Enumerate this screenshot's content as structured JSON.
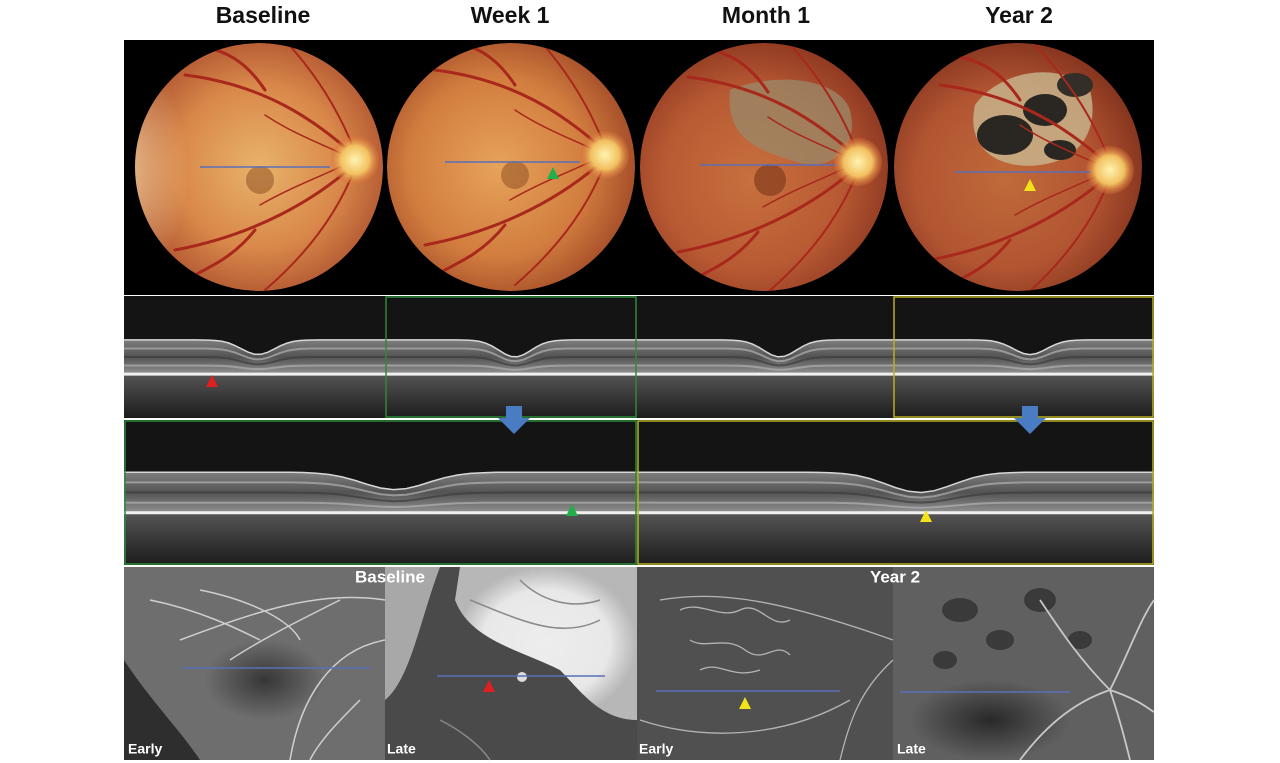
{
  "column_headers": [
    "Baseline",
    "Week 1",
    "Month 1",
    "Year 2"
  ],
  "angiography": {
    "groups": [
      {
        "label": "Baseline",
        "phases": [
          "Early",
          "Late"
        ]
      },
      {
        "label": "Year 2",
        "phases": [
          "Early",
          "Late"
        ]
      }
    ]
  }
}
